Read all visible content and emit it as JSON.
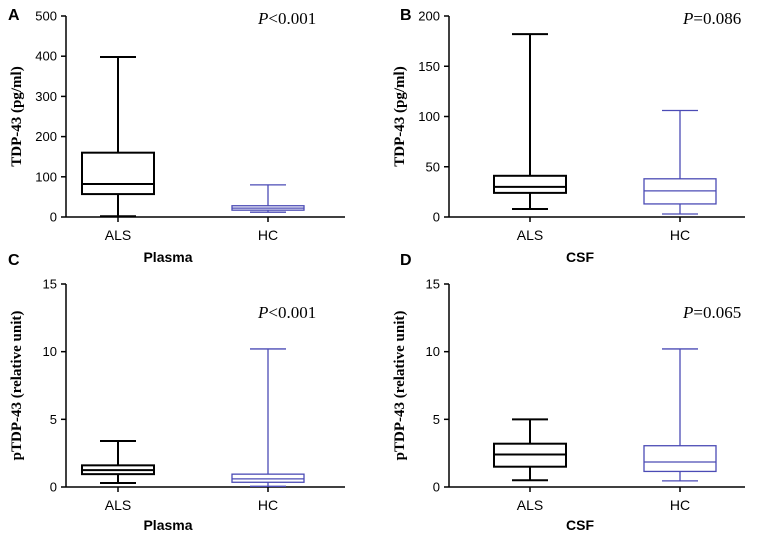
{
  "colors": {
    "als": "#000000",
    "hc": "#4b4bb5"
  },
  "chart_data": [
    {
      "type": "box",
      "panel_letter": "A",
      "title": "",
      "ylabel": "TDP-43 (pg/ml)",
      "xlabel": "Plasma",
      "ylim": [
        0,
        500
      ],
      "yticks": [
        0,
        100,
        200,
        300,
        400,
        500
      ],
      "ytick_labels": [
        "0",
        "100",
        "200",
        "300",
        "400",
        "500"
      ],
      "p_prefix": "P",
      "p_value": "<0.001",
      "series": [
        {
          "name": "ALS",
          "min": 2,
          "q1": 57,
          "median": 82,
          "q3": 160,
          "max": 398
        },
        {
          "name": "HC",
          "min": 12,
          "q1": 17,
          "median": 22,
          "q3": 28,
          "max": 80
        }
      ]
    },
    {
      "type": "box",
      "panel_letter": "B",
      "title": "",
      "ylabel": "TDP-43 (pg/ml)",
      "xlabel": "CSF",
      "ylim": [
        0,
        200
      ],
      "yticks": [
        0,
        50,
        100,
        150,
        200
      ],
      "ytick_labels": [
        "0",
        "50",
        "100",
        "150",
        "200"
      ],
      "p_prefix": "P",
      "p_value": "=0.086",
      "series": [
        {
          "name": "ALS",
          "min": 8,
          "q1": 24,
          "median": 30,
          "q3": 41,
          "max": 182
        },
        {
          "name": "HC",
          "min": 3,
          "q1": 13,
          "median": 26,
          "q3": 38,
          "max": 106
        }
      ]
    },
    {
      "type": "box",
      "panel_letter": "C",
      "title": "",
      "ylabel": "pTDP-43 (relative unit)",
      "xlabel": "Plasma",
      "ylim": [
        0,
        15
      ],
      "yticks": [
        0,
        5,
        10,
        15
      ],
      "ytick_labels": [
        "0",
        "5",
        "10",
        "15"
      ],
      "p_prefix": "P",
      "p_value": "<0.001",
      "series": [
        {
          "name": "ALS",
          "min": 0.3,
          "q1": 0.95,
          "median": 1.25,
          "q3": 1.6,
          "max": 3.4
        },
        {
          "name": "HC",
          "min": 0.05,
          "q1": 0.35,
          "median": 0.6,
          "q3": 0.95,
          "max": 10.2
        }
      ]
    },
    {
      "type": "box",
      "panel_letter": "D",
      "title": "",
      "ylabel": "pTDP-43 (relative unit)",
      "xlabel": "CSF",
      "ylim": [
        0,
        15
      ],
      "yticks": [
        0,
        5,
        10,
        15
      ],
      "ytick_labels": [
        "0",
        "5",
        "10",
        "15"
      ],
      "p_prefix": "P",
      "p_value": "=0.065",
      "series": [
        {
          "name": "ALS",
          "min": 0.5,
          "q1": 1.5,
          "median": 2.4,
          "q3": 3.2,
          "max": 5.0
        },
        {
          "name": "HC",
          "min": 0.45,
          "q1": 1.15,
          "median": 1.85,
          "q3": 3.05,
          "max": 10.2
        }
      ]
    }
  ]
}
